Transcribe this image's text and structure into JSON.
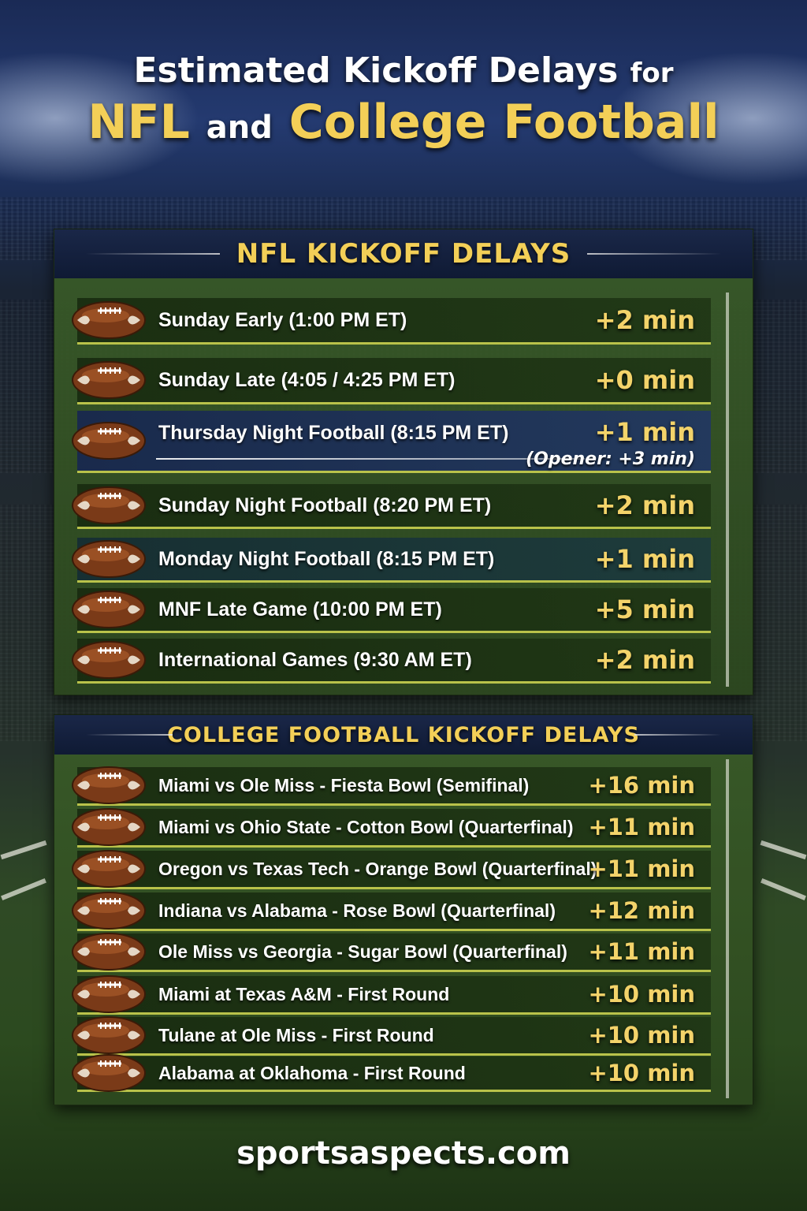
{
  "title": {
    "line1_main": "Estimated Kickoff Delays",
    "line1_small": "for",
    "line2_a": "NFL",
    "line2_and": "and",
    "line2_b": "College Football"
  },
  "nfl": {
    "heading": "NFL KICKOFF DELAYS",
    "rows": [
      {
        "label": "Sunday Early (1:00 PM ET)",
        "delay": "+2 min"
      },
      {
        "label": "Sunday Late (4:05 / 4:25 PM ET)",
        "delay": "+0 min"
      },
      {
        "label": "Thursday Night Football (8:15 PM ET)",
        "delay": "+1 min",
        "note": "(Opener:  +3 min)"
      },
      {
        "label": "Sunday Night Football (8:20 PM ET)",
        "delay": "+2 min"
      },
      {
        "label": "Monday Night Football (8:15 PM ET)",
        "delay": "+1 min"
      },
      {
        "label": "MNF Late Game (10:00 PM ET)",
        "delay": "+5 min"
      },
      {
        "label": "International Games (9:30 AM ET)",
        "delay": "+2 min"
      }
    ]
  },
  "college": {
    "heading": "COLLEGE FOOTBALL KICKOFF DELAYS",
    "rows": [
      {
        "label": "Miami vs Ole Miss - Fiesta Bowl (Semifinal)",
        "delay": "+16 min"
      },
      {
        "label": "Miami vs Ohio State - Cotton Bowl (Quarterfinal)",
        "delay": "+11 min"
      },
      {
        "label": "Oregon vs Texas Tech - Orange Bowl (Quarterfinal)",
        "delay": "+11 min"
      },
      {
        "label": "Indiana vs Alabama - Rose Bowl (Quarterfinal)",
        "delay": "+12 min"
      },
      {
        "label": "Ole Miss vs Georgia - Sugar Bowl (Quarterfinal)",
        "delay": "+11 min"
      },
      {
        "label": "Miami at Texas A&M - First Round",
        "delay": "+10 min"
      },
      {
        "label": "Tulane at Ole Miss - First Round",
        "delay": "+10 min"
      },
      {
        "label": "Alabama at Oklahoma - First Round",
        "delay": "+10 min"
      }
    ]
  },
  "footer": "sportsaspects.com",
  "colors": {
    "gold": "#f3cf57",
    "navy": "#1a2748",
    "turf": "#2c4a1f",
    "yardline": "#b9c24a"
  },
  "icons": {
    "row_icon": "football-icon"
  }
}
